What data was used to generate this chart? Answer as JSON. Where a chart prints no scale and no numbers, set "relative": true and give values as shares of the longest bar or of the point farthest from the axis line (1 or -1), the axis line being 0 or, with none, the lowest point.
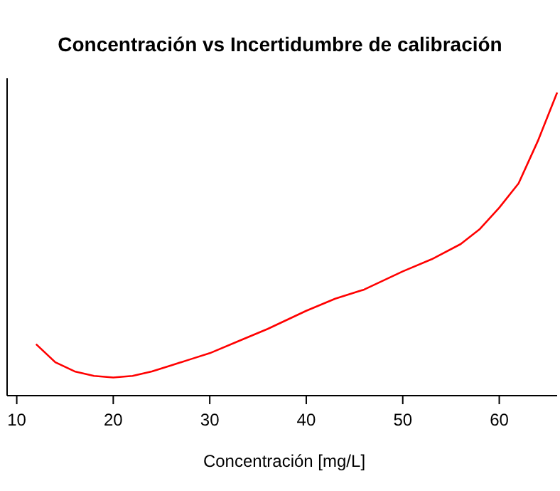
{
  "chart_data": {
    "type": "line",
    "title": "Concentración vs Incertidumbre de calibración",
    "xlabel": "Concentración [mg/L]",
    "relative": true,
    "xlim": [
      9,
      66
    ],
    "xticks": [
      10,
      20,
      30,
      40,
      50,
      60
    ],
    "grid": false,
    "series": [
      {
        "color": "#ff0000",
        "x": [
          12,
          14,
          16,
          18,
          20,
          22,
          24,
          26,
          28,
          30,
          33,
          36,
          40,
          43,
          46,
          50,
          53,
          56,
          58,
          60,
          62,
          64,
          66
        ],
        "values": [
          0.17,
          0.11,
          0.08,
          0.065,
          0.06,
          0.065,
          0.08,
          0.1,
          0.12,
          0.14,
          0.18,
          0.22,
          0.28,
          0.32,
          0.35,
          0.41,
          0.45,
          0.5,
          0.55,
          0.62,
          0.7,
          0.84,
          1
        ]
      }
    ]
  }
}
